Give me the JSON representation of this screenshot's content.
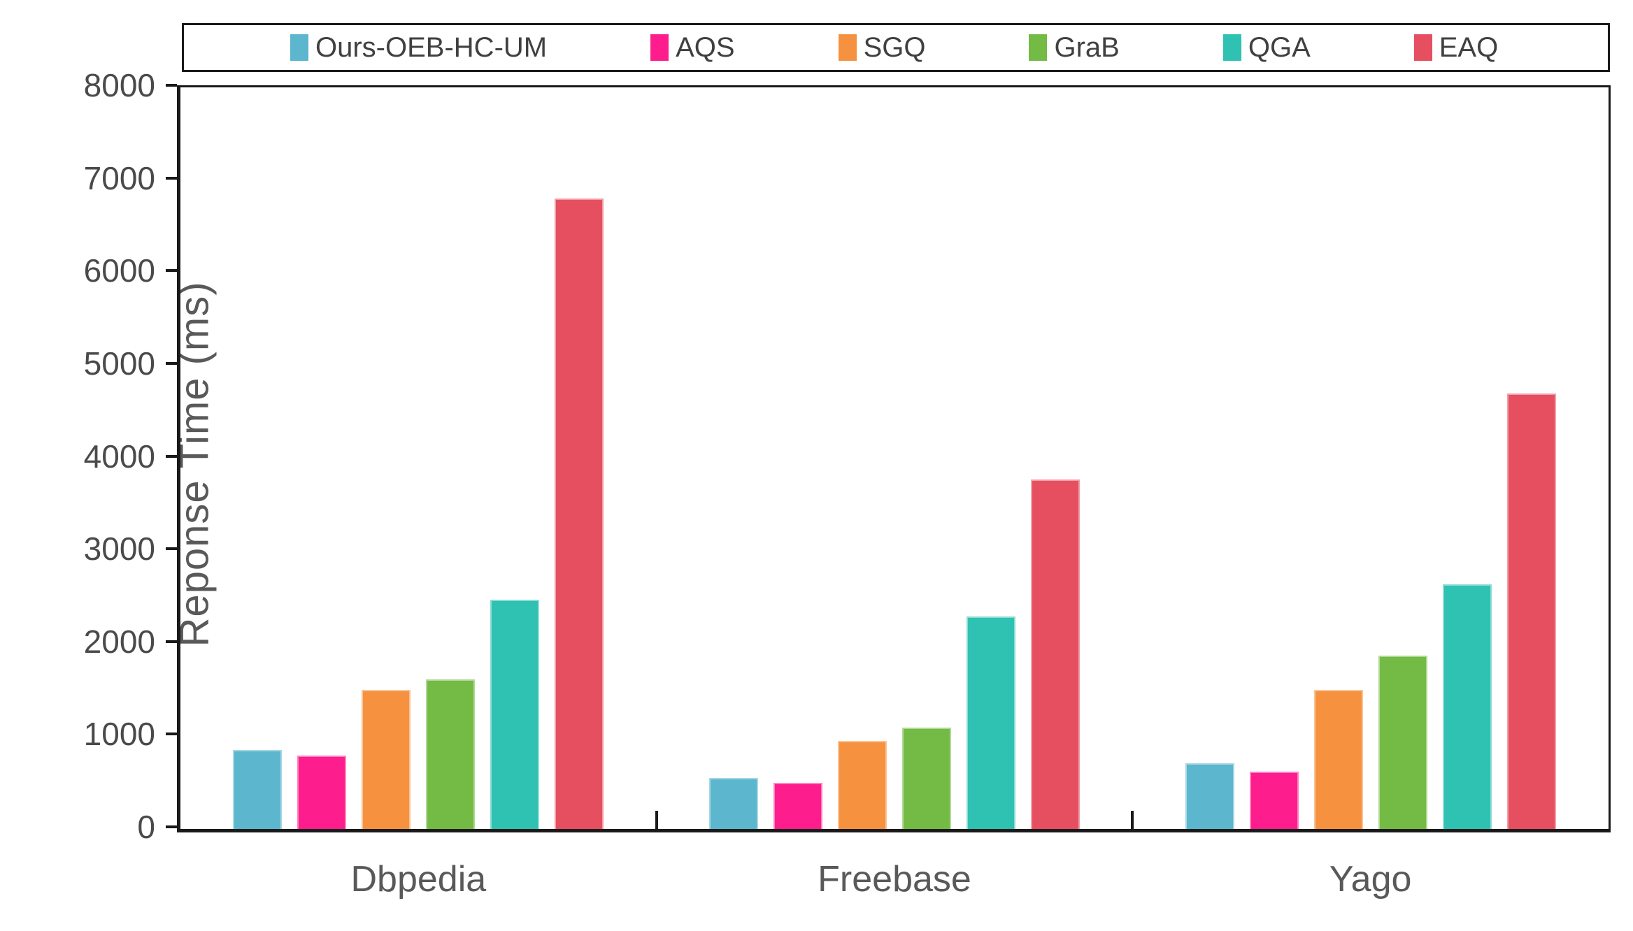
{
  "chart_data": {
    "type": "bar",
    "title": "",
    "xlabel": "",
    "ylabel": "Reponse Time (ms)",
    "ylim": [
      0,
      8000
    ],
    "ytick_step": 1000,
    "yticks": [
      0,
      1000,
      2000,
      3000,
      4000,
      5000,
      6000,
      7000,
      8000
    ],
    "grid": false,
    "legend_position": "top",
    "categories": [
      "Dbpedia",
      "Freebase",
      "Yago"
    ],
    "series": [
      {
        "name": "Ours-OEB-HC-UM",
        "color": "#5BB6CE",
        "values": [
          850,
          550,
          710
        ]
      },
      {
        "name": "AQS",
        "color": "#FD1D8D",
        "values": [
          790,
          500,
          620
        ]
      },
      {
        "name": "SGQ",
        "color": "#F6923F",
        "values": [
          1500,
          950,
          1500
        ]
      },
      {
        "name": "GraB",
        "color": "#73BB44",
        "values": [
          1610,
          1090,
          1870
        ]
      },
      {
        "name": "QGA",
        "color": "#2FC1B2",
        "values": [
          2470,
          2290,
          2640
        ]
      },
      {
        "name": "EAQ",
        "color": "#E64F5F",
        "values": [
          6800,
          3770,
          4700
        ]
      }
    ],
    "axis_color": "#1a1a1a",
    "text_color": "#4a4a4a"
  }
}
